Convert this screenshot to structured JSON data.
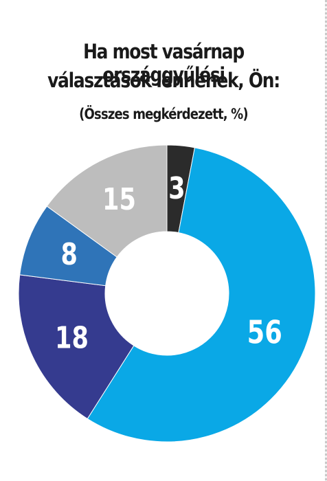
{
  "chart_data": {
    "type": "pie",
    "title": "Ha most vasárnap országgyűlési választások lennének, Ön:",
    "title_lines": [
      "Ha most vasárnap országgyűlési",
      "választások lennének, Ön:"
    ],
    "subtitle": "(Összes megkérdezett, %)",
    "categories": [
      "",
      "",
      "",
      "",
      ""
    ],
    "values": [
      3,
      56,
      18,
      8,
      15
    ],
    "colors": [
      "#2b2b2b",
      "#0aa8e6",
      "#353b8f",
      "#2f74b8",
      "#bdbdbd"
    ],
    "donut": true,
    "legend": "none"
  }
}
